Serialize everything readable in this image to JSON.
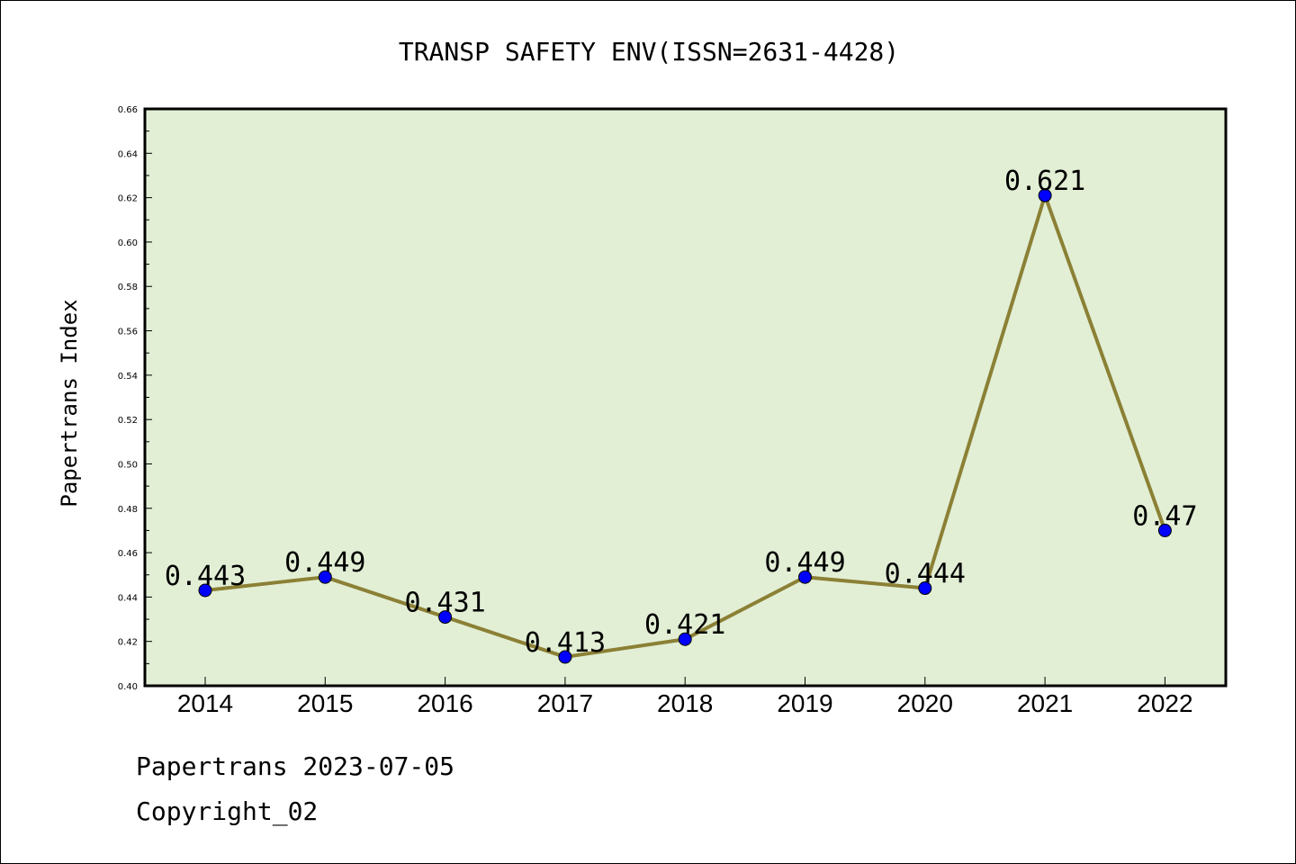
{
  "chart_data": {
    "type": "line",
    "title": "TRANSP SAFETY ENV(ISSN=2631-4428)",
    "xlabel": "",
    "ylabel": "Papertrans Index",
    "categories": [
      "2014",
      "2015",
      "2016",
      "2017",
      "2018",
      "2019",
      "2020",
      "2021",
      "2022"
    ],
    "series": [
      {
        "values": [
          0.443,
          0.449,
          0.431,
          0.413,
          0.421,
          0.449,
          0.444,
          0.621,
          0.47
        ],
        "labels": [
          "0.443",
          "0.449",
          "0.431",
          "0.413",
          "0.421",
          "0.449",
          "0.444",
          "0.621",
          "0.47"
        ]
      }
    ],
    "ylim": [
      0.4,
      0.66
    ],
    "yticks": [
      "0.40",
      "0.42",
      "0.44",
      "0.46",
      "0.48",
      "0.50",
      "0.52",
      "0.54",
      "0.56",
      "0.58",
      "0.60",
      "0.62",
      "0.64",
      "0.66"
    ],
    "grid": false,
    "colors": {
      "plot_background": "#e2efd5",
      "line": "#8b8035",
      "marker": "#0000ff"
    }
  },
  "footer": {
    "line1": "Papertrans 2023-07-05",
    "line2": "Copyright_02"
  }
}
